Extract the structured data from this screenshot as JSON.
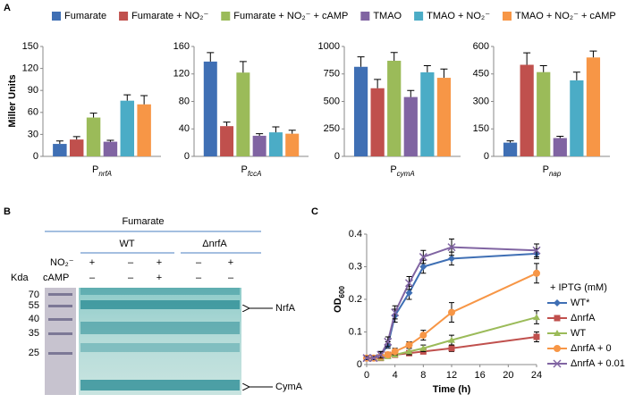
{
  "figure": {
    "panel_labels": [
      "A",
      "B",
      "C"
    ]
  },
  "legend": {
    "names": [
      "Fumarate",
      "Fumarate + NO₂⁻",
      "Fumarate + NO₂⁻ + cAMP",
      "TMAO",
      "TMAO + NO₂⁻",
      "TMAO + NO₂⁻ + cAMP"
    ],
    "colors": [
      "#3f6fb4",
      "#c0504d",
      "#9bbb59",
      "#8064a2",
      "#4bacc6",
      "#f79646"
    ]
  },
  "chart_data": [
    {
      "type": "bar",
      "ylabel": "Miller Units",
      "promoter": "P",
      "promoter_sub": "nrfA",
      "values": [
        17,
        23,
        53,
        20,
        76,
        71
      ],
      "errors": [
        4,
        4,
        6,
        2,
        8,
        12
      ],
      "ylim": [
        0,
        150
      ],
      "yticks": [
        0,
        30,
        60,
        90,
        120,
        150
      ]
    },
    {
      "type": "bar",
      "promoter": "P",
      "promoter_sub": "fccA",
      "values": [
        138,
        44,
        122,
        30,
        35,
        33
      ],
      "errors": [
        13,
        6,
        16,
        3,
        8,
        5
      ],
      "ylim": [
        0,
        160
      ],
      "yticks": [
        0,
        40,
        80,
        120,
        160
      ]
    },
    {
      "type": "bar",
      "promoter": "P",
      "promoter_sub": "cymA",
      "values": [
        815,
        620,
        870,
        540,
        765,
        715
      ],
      "errors": [
        90,
        80,
        75,
        60,
        60,
        80
      ],
      "ylim": [
        0,
        1000
      ],
      "yticks": [
        0,
        250,
        500,
        750,
        1000
      ]
    },
    {
      "type": "bar",
      "promoter": "P",
      "promoter_sub": "nap",
      "values": [
        75,
        500,
        460,
        100,
        415,
        540
      ],
      "errors": [
        10,
        65,
        35,
        10,
        45,
        35
      ],
      "ylim": [
        0,
        600
      ],
      "yticks": [
        0,
        150,
        300,
        450,
        600
      ]
    },
    {
      "type": "line",
      "xlabel": "Time (h)",
      "ylabel": "OD",
      "ylabel_sub": "600",
      "legend_title": "+ IPTG (mM)",
      "x": [
        0,
        1,
        2,
        3,
        4,
        6,
        8,
        12,
        24
      ],
      "xlim": [
        0,
        24
      ],
      "xticks": [
        0,
        4,
        8,
        12,
        16,
        20,
        24
      ],
      "ylim": [
        0,
        0.4
      ],
      "yticks": [
        0,
        0.1,
        0.2,
        0.3,
        0.4
      ],
      "series": [
        {
          "name": "WT*",
          "color": "#3f6fb4",
          "marker": "diamond",
          "values": [
            0.02,
            0.02,
            0.03,
            0.06,
            0.15,
            0.22,
            0.3,
            0.325,
            0.34
          ],
          "errors": [
            0.005,
            0.005,
            0.01,
            0.01,
            0.02,
            0.02,
            0.02,
            0.02,
            0.015
          ]
        },
        {
          "name": "ΔnrfA",
          "color": "#c0504d",
          "marker": "square",
          "values": [
            0.02,
            0.02,
            0.02,
            0.03,
            0.03,
            0.035,
            0.04,
            0.05,
            0.085
          ],
          "errors": [
            0.005,
            0.005,
            0.005,
            0.005,
            0.005,
            0.005,
            0.005,
            0.01,
            0.015
          ]
        },
        {
          "name": "WT",
          "color": "#9bbb59",
          "marker": "triangle",
          "values": [
            0.02,
            0.02,
            0.02,
            0.025,
            0.03,
            0.04,
            0.05,
            0.075,
            0.145
          ],
          "errors": [
            0.005,
            0.005,
            0.005,
            0.005,
            0.005,
            0.01,
            0.01,
            0.015,
            0.02
          ]
        },
        {
          "name": "ΔnrfA + 0",
          "color": "#f79646",
          "marker": "circle",
          "values": [
            0.02,
            0.02,
            0.025,
            0.03,
            0.04,
            0.06,
            0.09,
            0.16,
            0.28
          ],
          "errors": [
            0.005,
            0.005,
            0.005,
            0.005,
            0.01,
            0.01,
            0.015,
            0.03,
            0.03
          ]
        },
        {
          "name": "ΔnrfA + 0.01",
          "color": "#8064a2",
          "marker": "x",
          "values": [
            0.02,
            0.02,
            0.03,
            0.07,
            0.16,
            0.25,
            0.33,
            0.36,
            0.35
          ],
          "errors": [
            0.005,
            0.005,
            0.01,
            0.015,
            0.02,
            0.02,
            0.02,
            0.025,
            0.02
          ]
        }
      ]
    }
  ],
  "gel": {
    "title": "Fumarate",
    "groups": [
      "WT",
      "ΔnrfA"
    ],
    "unit": "Kda",
    "rows": [
      {
        "label": "NO₂⁻",
        "marks": [
          "+",
          "–",
          "+",
          "–",
          "+"
        ]
      },
      {
        "label": "cAMP",
        "marks": [
          "–",
          "–",
          "+",
          "–",
          "–"
        ]
      }
    ],
    "ladder": [
      70,
      55,
      40,
      35,
      25
    ],
    "bands": [
      "NrfA",
      "CymA"
    ]
  }
}
